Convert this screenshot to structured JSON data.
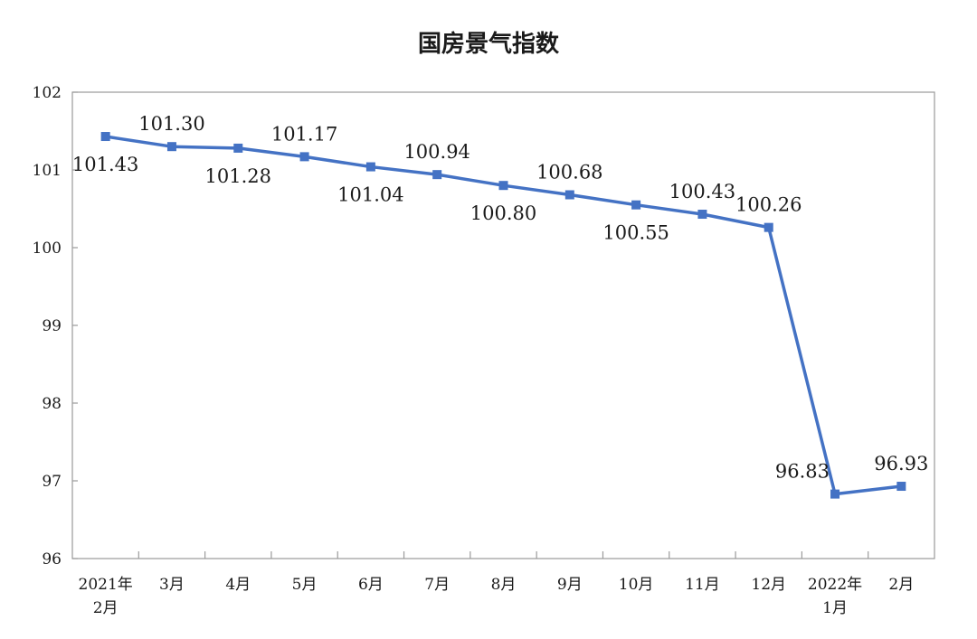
{
  "chart_data": {
    "type": "line",
    "title": "国房景气指数",
    "xlabel": "",
    "ylabel": "",
    "ylim": [
      96,
      102
    ],
    "yticks": [
      96,
      97,
      98,
      99,
      100,
      101,
      102
    ],
    "grid": false,
    "categories": [
      [
        "2021年",
        "2月"
      ],
      [
        "3月"
      ],
      [
        "4月"
      ],
      [
        "5月"
      ],
      [
        "6月"
      ],
      [
        "7月"
      ],
      [
        "8月"
      ],
      [
        "9月"
      ],
      [
        "10月"
      ],
      [
        "11月"
      ],
      [
        "12月"
      ],
      [
        "2022年",
        "1月"
      ],
      [
        "2月"
      ]
    ],
    "series": [
      {
        "values": [
          101.43,
          101.3,
          101.28,
          101.17,
          101.04,
          100.94,
          100.8,
          100.68,
          100.55,
          100.43,
          100.26,
          96.83,
          96.93
        ],
        "labels": [
          "101.43",
          "101.30",
          "101.28",
          "101.17",
          "101.04",
          "100.94",
          "100.80",
          "100.68",
          "100.55",
          "100.43",
          "100.26",
          "96.83",
          "96.93"
        ]
      }
    ],
    "colors": {
      "line": "#4472c4",
      "axis": "#9a9a9a",
      "text": "#1a1a1a"
    }
  }
}
